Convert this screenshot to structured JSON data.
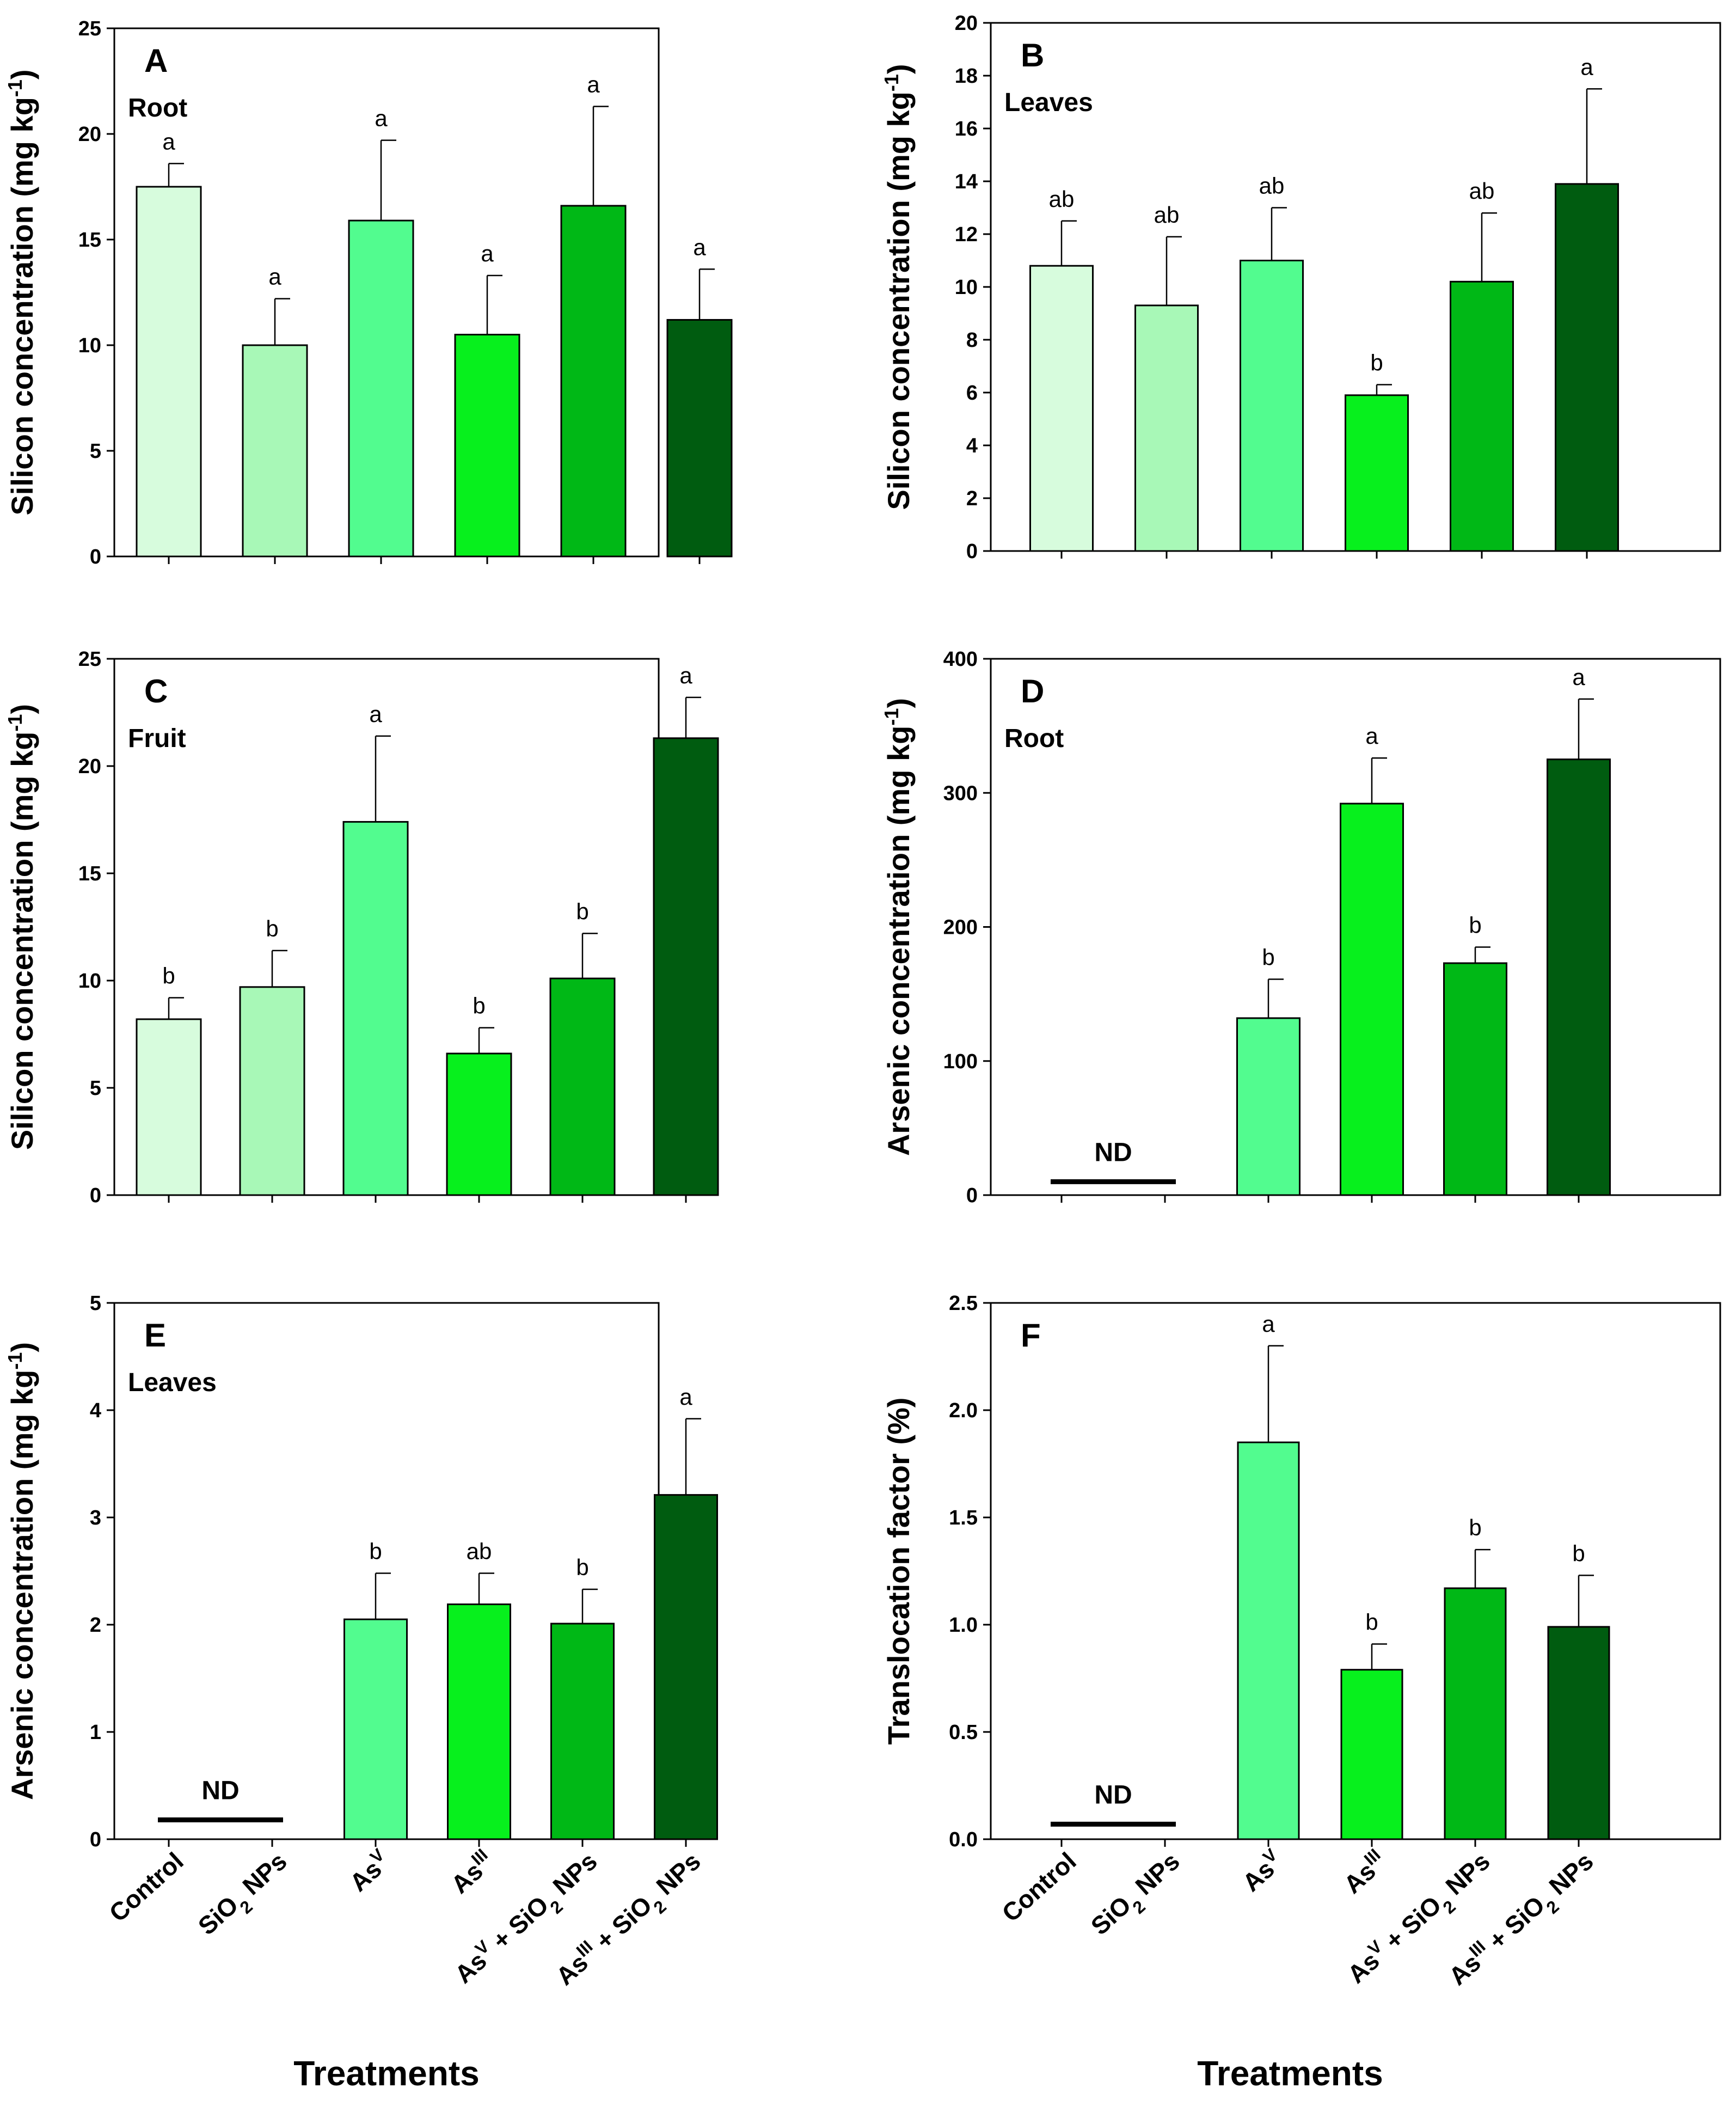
{
  "colors": [
    "#d7fcdd",
    "#a8f8b7",
    "#52fc8f",
    "#07f01d",
    "#00b816",
    "#005c10"
  ],
  "categories": [
    {
      "base": "Control",
      "sup": "",
      "sub": "",
      "rest": ""
    },
    {
      "base": "SiO",
      "sup": "",
      "sub": "2",
      "rest": " NPs"
    },
    {
      "base": "As",
      "sup": "V",
      "sub": "",
      "rest": ""
    },
    {
      "base": "As",
      "sup": "III",
      "sub": "",
      "rest": ""
    },
    {
      "base": "As",
      "sup": "V",
      "sub": "",
      "rest": " + SiO",
      "sub2": "2",
      "rest2": " NPs"
    },
    {
      "base": "As",
      "sup": "III",
      "sub": "",
      "rest": " + SiO",
      "sub2": "2",
      "rest2": " NPs"
    }
  ],
  "x_title": "Treatments",
  "nd_label": "ND",
  "chart_data": [
    {
      "type": "bar",
      "panel": "A",
      "tissue": "Root",
      "ylabel": "Silicon concentration (mg kg",
      "ylabel_sup": "-1",
      "ylim": [
        0,
        25
      ],
      "yticks": [
        "0",
        "5",
        "10",
        "15",
        "20",
        "25"
      ],
      "ytick_values": [
        0,
        5,
        10,
        15,
        20,
        25
      ],
      "values": [
        17.5,
        10.0,
        15.9,
        10.5,
        16.6,
        11.2
      ],
      "errors": [
        1.1,
        2.2,
        3.8,
        2.8,
        4.7,
        2.4
      ],
      "letters": [
        "a",
        "a",
        "a",
        "a",
        "a",
        "a"
      ]
    },
    {
      "type": "bar",
      "panel": "B",
      "tissue": "Leaves",
      "ylabel": "Silicon concentration (mg kg",
      "ylabel_sup": "-1",
      "ylim": [
        0,
        20
      ],
      "yticks": [
        "0",
        "2",
        "4",
        "6",
        "8",
        "10",
        "12",
        "14",
        "16",
        "18",
        "20"
      ],
      "ytick_values": [
        0,
        2,
        4,
        6,
        8,
        10,
        12,
        14,
        16,
        18,
        20
      ],
      "values": [
        10.8,
        9.3,
        11.0,
        5.9,
        10.2,
        13.9
      ],
      "errors": [
        1.7,
        2.6,
        2.0,
        0.4,
        2.6,
        3.6
      ],
      "letters": [
        "ab",
        "ab",
        "ab",
        "b",
        "ab",
        "a"
      ]
    },
    {
      "type": "bar",
      "panel": "C",
      "tissue": "Fruit",
      "ylabel": "Silicon concentration (mg kg",
      "ylabel_sup": "-1",
      "ylim": [
        0,
        25
      ],
      "yticks": [
        "0",
        "5",
        "10",
        "15",
        "20",
        "25"
      ],
      "ytick_values": [
        0,
        5,
        10,
        15,
        20,
        25
      ],
      "values": [
        8.2,
        9.7,
        17.4,
        6.6,
        10.1,
        21.3
      ],
      "errors": [
        1.0,
        1.7,
        4.0,
        1.2,
        2.1,
        1.9
      ],
      "letters": [
        "b",
        "b",
        "a",
        "b",
        "b",
        "a"
      ]
    },
    {
      "type": "bar",
      "panel": "D",
      "tissue": "Root",
      "ylabel": "Arsenic concentration (mg kg",
      "ylabel_sup": "-1",
      "ylim": [
        0,
        400
      ],
      "yticks": [
        "0",
        "100",
        "200",
        "300",
        "400"
      ],
      "ytick_values": [
        0,
        100,
        200,
        300,
        400
      ],
      "values": [
        null,
        null,
        132,
        292,
        173,
        325
      ],
      "errors": [
        null,
        null,
        29,
        34,
        12,
        45
      ],
      "letters": [
        "",
        "",
        "b",
        "a",
        "b",
        "a"
      ],
      "nd": true,
      "nd_level": 10
    },
    {
      "type": "bar",
      "panel": "E",
      "tissue": "Leaves",
      "ylabel": "Arsenic concentration (mg kg",
      "ylabel_sup": "-1",
      "ylim": [
        0,
        5
      ],
      "yticks": [
        "0",
        "1",
        "2",
        "3",
        "4",
        "5"
      ],
      "ytick_values": [
        0,
        1,
        2,
        3,
        4,
        5
      ],
      "values": [
        null,
        null,
        2.05,
        2.19,
        2.01,
        3.21
      ],
      "errors": [
        null,
        null,
        0.43,
        0.29,
        0.32,
        0.71
      ],
      "letters": [
        "",
        "",
        "b",
        "ab",
        "b",
        "a"
      ],
      "nd": true,
      "nd_level": 0.18
    },
    {
      "type": "bar",
      "panel": "F",
      "tissue": "",
      "ylabel": "Translocation factor (%)",
      "ylabel_sup": "",
      "ylim": [
        0,
        2.5
      ],
      "yticks": [
        "0.0",
        "0.5",
        "1.0",
        "1.5",
        "2.0",
        "2.5"
      ],
      "ytick_values": [
        0,
        0.5,
        1.0,
        1.5,
        2.0,
        2.5
      ],
      "values": [
        null,
        null,
        1.85,
        0.79,
        1.17,
        0.99
      ],
      "errors": [
        null,
        null,
        0.45,
        0.12,
        0.18,
        0.24
      ],
      "letters": [
        "",
        "",
        "a",
        "b",
        "b",
        "b"
      ],
      "nd": true,
      "nd_level": 0.07
    }
  ]
}
